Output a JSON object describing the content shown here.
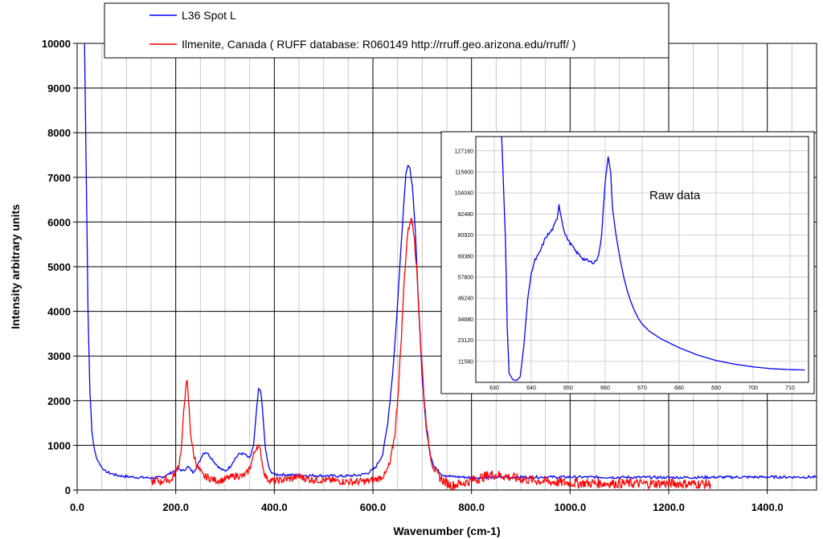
{
  "chart_data": [
    {
      "type": "line",
      "xlabel": "Wavenumber (cm-1)",
      "ylabel": "Intensity arbitrary units",
      "xlim": [
        0,
        1500
      ],
      "ylim": [
        0,
        10000
      ],
      "x_major_ticks": [
        0,
        200,
        400,
        600,
        800,
        1000,
        1200,
        1400
      ],
      "x_tick_labels": [
        "0.0",
        "200.0",
        "400.0",
        "600.0",
        "800.0",
        "1000.0",
        "1200.0",
        "1400.0"
      ],
      "y_ticks": [
        0,
        1000,
        2000,
        3000,
        4000,
        5000,
        6000,
        7000,
        8000,
        9000,
        10000
      ],
      "y_tick_labels": [
        "0",
        "1000",
        "2000",
        "3000",
        "4000",
        "5000",
        "6000",
        "7000",
        "8000",
        "9000",
        "10000"
      ],
      "grid": true,
      "legend": "top",
      "series": [
        {
          "name": "L36 Spot L",
          "color": "#0000ff",
          "points": [
            [
              15,
              10000
            ],
            [
              18,
              7500
            ],
            [
              22,
              4000
            ],
            [
              26,
              2200
            ],
            [
              30,
              1300
            ],
            [
              35,
              900
            ],
            [
              40,
              700
            ],
            [
              50,
              500
            ],
            [
              60,
              400
            ],
            [
              80,
              330
            ],
            [
              100,
              300
            ],
            [
              130,
              280
            ],
            [
              160,
              270
            ],
            [
              175,
              300
            ],
            [
              185,
              350
            ],
            [
              195,
              420
            ],
            [
              205,
              470
            ],
            [
              215,
              430
            ],
            [
              225,
              520
            ],
            [
              235,
              400
            ],
            [
              245,
              560
            ],
            [
              255,
              820
            ],
            [
              262,
              850
            ],
            [
              270,
              750
            ],
            [
              280,
              600
            ],
            [
              290,
              480
            ],
            [
              300,
              420
            ],
            [
              310,
              520
            ],
            [
              320,
              700
            ],
            [
              330,
              820
            ],
            [
              340,
              800
            ],
            [
              350,
              700
            ],
            [
              358,
              1000
            ],
            [
              364,
              1800
            ],
            [
              368,
              2250
            ],
            [
              372,
              2250
            ],
            [
              376,
              1800
            ],
            [
              382,
              900
            ],
            [
              390,
              450
            ],
            [
              400,
              350
            ],
            [
              450,
              330
            ],
            [
              500,
              320
            ],
            [
              540,
              310
            ],
            [
              570,
              330
            ],
            [
              590,
              380
            ],
            [
              605,
              500
            ],
            [
              620,
              800
            ],
            [
              630,
              1500
            ],
            [
              640,
              2600
            ],
            [
              648,
              3800
            ],
            [
              655,
              5100
            ],
            [
              662,
              6300
            ],
            [
              667,
              7100
            ],
            [
              671,
              7260
            ],
            [
              675,
              7200
            ],
            [
              680,
              6800
            ],
            [
              686,
              5800
            ],
            [
              692,
              4300
            ],
            [
              700,
              2500
            ],
            [
              708,
              1400
            ],
            [
              716,
              800
            ],
            [
              725,
              500
            ],
            [
              740,
              350
            ],
            [
              760,
              300
            ],
            [
              800,
              280
            ],
            [
              850,
              280
            ],
            [
              900,
              290
            ],
            [
              1000,
              290
            ],
            [
              1100,
              285
            ],
            [
              1200,
              280
            ],
            [
              1300,
              285
            ],
            [
              1400,
              290
            ],
            [
              1500,
              290
            ]
          ]
        },
        {
          "name": "Ilmenite, Canada  ( RUFF database: R060149  http://rruff.geo.arizona.edu/rruff/ )",
          "color": "#ff0000",
          "points": [
            [
              150,
              150
            ],
            [
              160,
              230
            ],
            [
              170,
              180
            ],
            [
              180,
              250
            ],
            [
              190,
              200
            ],
            [
              200,
              420
            ],
            [
              207,
              600
            ],
            [
              212,
              1000
            ],
            [
              216,
              1700
            ],
            [
              220,
              2300
            ],
            [
              223,
              2400
            ],
            [
              226,
              2000
            ],
            [
              230,
              1300
            ],
            [
              236,
              800
            ],
            [
              245,
              500
            ],
            [
              255,
              320
            ],
            [
              265,
              280
            ],
            [
              280,
              220
            ],
            [
              295,
              220
            ],
            [
              310,
              280
            ],
            [
              325,
              330
            ],
            [
              335,
              300
            ],
            [
              345,
              380
            ],
            [
              352,
              550
            ],
            [
              358,
              780
            ],
            [
              363,
              950
            ],
            [
              367,
              1000
            ],
            [
              372,
              850
            ],
            [
              378,
              450
            ],
            [
              385,
              250
            ],
            [
              400,
              200
            ],
            [
              430,
              250
            ],
            [
              450,
              300
            ],
            [
              470,
              240
            ],
            [
              500,
              220
            ],
            [
              530,
              200
            ],
            [
              560,
              180
            ],
            [
              590,
              200
            ],
            [
              610,
              250
            ],
            [
              625,
              350
            ],
            [
              635,
              600
            ],
            [
              645,
              1300
            ],
            [
              652,
              2300
            ],
            [
              658,
              3500
            ],
            [
              664,
              4800
            ],
            [
              670,
              5700
            ],
            [
              675,
              6000
            ],
            [
              679,
              6050
            ],
            [
              684,
              5700
            ],
            [
              690,
              4700
            ],
            [
              697,
              3200
            ],
            [
              705,
              1900
            ],
            [
              712,
              1100
            ],
            [
              720,
              600
            ],
            [
              730,
              350
            ],
            [
              745,
              180
            ],
            [
              760,
              100
            ],
            [
              790,
              180
            ],
            [
              820,
              280
            ],
            [
              840,
              350
            ],
            [
              860,
              330
            ],
            [
              880,
              280
            ],
            [
              900,
              250
            ],
            [
              950,
              190
            ],
            [
              1000,
              160
            ],
            [
              1050,
              150
            ],
            [
              1100,
              150
            ],
            [
              1150,
              140
            ],
            [
              1200,
              150
            ],
            [
              1250,
              140
            ],
            [
              1285,
              130
            ]
          ]
        }
      ]
    },
    {
      "type": "line",
      "title": "Raw data",
      "xlim": [
        625,
        715
      ],
      "ylim": [
        0,
        135000
      ],
      "x_ticks": [
        630,
        640,
        650,
        660,
        670,
        680,
        690,
        700,
        710
      ],
      "x_tick_labels": [
        "630",
        "640",
        "650",
        "660",
        "670",
        "680",
        "690",
        "700",
        "710"
      ],
      "y_ticks": [
        11560,
        23120,
        34680,
        46240,
        57800,
        69360,
        80920,
        92480,
        104040,
        115600,
        127160
      ],
      "y_tick_labels": [
        "11560",
        "23120",
        "34680",
        "46240",
        "57800",
        "69360",
        "80920",
        "92480",
        "104040",
        "115600",
        "127160"
      ],
      "grid": true,
      "series": [
        {
          "color": "#0000ff",
          "points": [
            [
              632,
              135000
            ],
            [
              633,
              80000
            ],
            [
              633.5,
              30000
            ],
            [
              634,
              5000
            ],
            [
              635,
              1500
            ],
            [
              636,
              1000
            ],
            [
              637,
              3000
            ],
            [
              638,
              20000
            ],
            [
              639,
              45000
            ],
            [
              640,
              60000
            ],
            [
              641,
              67000
            ],
            [
              642,
              70000
            ],
            [
              643,
              75000
            ],
            [
              644,
              80000
            ],
            [
              645,
              82000
            ],
            [
              646,
              85000
            ],
            [
              647,
              90000
            ],
            [
              647.5,
              98000
            ],
            [
              648,
              92000
            ],
            [
              649,
              82000
            ],
            [
              650,
              78000
            ],
            [
              651,
              75000
            ],
            [
              652,
              72000
            ],
            [
              653,
              70000
            ],
            [
              654,
              68000
            ],
            [
              655,
              67000
            ],
            [
              656,
              66000
            ],
            [
              657,
              66000
            ],
            [
              658,
              68000
            ],
            [
              659,
              80000
            ],
            [
              660,
              110000
            ],
            [
              660.8,
              124000
            ],
            [
              661.5,
              115000
            ],
            [
              662,
              95000
            ],
            [
              663,
              80000
            ],
            [
              664,
              68000
            ],
            [
              665,
              58000
            ],
            [
              666,
              50000
            ],
            [
              667,
              44000
            ],
            [
              668,
              39000
            ],
            [
              669,
              35000
            ],
            [
              670,
              32000
            ],
            [
              672,
              28000
            ],
            [
              675,
              24000
            ],
            [
              680,
              19000
            ],
            [
              685,
              15000
            ],
            [
              690,
              12000
            ],
            [
              695,
              10000
            ],
            [
              700,
              8500
            ],
            [
              705,
              7500
            ],
            [
              710,
              7000
            ],
            [
              714,
              6800
            ]
          ]
        }
      ]
    }
  ]
}
